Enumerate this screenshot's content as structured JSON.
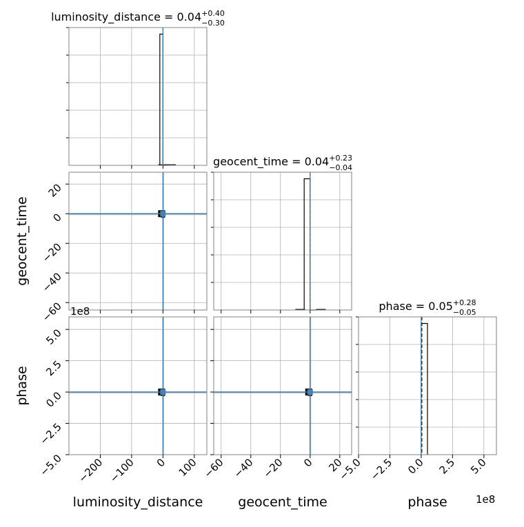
{
  "chart_data": {
    "type": "corner",
    "parameters": [
      "luminosity_distance",
      "geocent_time",
      "phase"
    ],
    "axis_labels": {
      "x": [
        "luminosity_distance",
        "geocent_time",
        "phase"
      ],
      "y": [
        "geocent_time",
        "phase"
      ]
    },
    "titles": [
      {
        "param": "luminosity_distance",
        "text": "luminosity_distance = 0.04",
        "plus": "+0.40",
        "minus": "−0.30"
      },
      {
        "param": "geocent_time",
        "text": "geocent_time = 0.04",
        "plus": "+0.23",
        "minus": "−0.04"
      },
      {
        "param": "phase",
        "text": "phase = 0.05",
        "plus": "+0.28",
        "minus": "−0.05"
      }
    ],
    "ranges": {
      "luminosity_distance": [
        -300,
        140
      ],
      "geocent_time": [
        -65,
        28
      ],
      "phase": [
        -500000000,
        600000000
      ]
    },
    "ticks": {
      "luminosity_distance": [
        {
          "v": -200,
          "label": "−200"
        },
        {
          "v": -100,
          "label": "−100"
        },
        {
          "v": 0,
          "label": "0"
        },
        {
          "v": 100,
          "label": "100"
        }
      ],
      "geocent_time": [
        {
          "v": -60,
          "label": "−60"
        },
        {
          "v": -40,
          "label": "−40"
        },
        {
          "v": -20,
          "label": "−20"
        },
        {
          "v": 0,
          "label": "0"
        },
        {
          "v": 20,
          "label": "20"
        }
      ],
      "phase": [
        {
          "v": -500000000,
          "label": "−5.0"
        },
        {
          "v": -250000000,
          "label": "−2.5"
        },
        {
          "v": 0,
          "label": "0.0"
        },
        {
          "v": 250000000,
          "label": "2.5"
        },
        {
          "v": 500000000,
          "label": "5.0"
        }
      ]
    },
    "offset_labels": {
      "phase_y": "1e8",
      "phase_x": "1e8"
    },
    "truths": {
      "luminosity_distance": 0,
      "geocent_time": 0,
      "phase": 0
    },
    "medians": {
      "luminosity_distance": 0.04,
      "geocent_time": 0.04,
      "phase": 5000000
    },
    "histograms": {
      "luminosity_distance": {
        "edges": [
          -10,
          0,
          10
        ],
        "counts": [
          1.0,
          0.0
        ],
        "tails": [
          [
            -15,
            0.005
          ],
          [
            10,
            0.005
          ]
        ]
      },
      "geocent_time": {
        "edges": [
          -4,
          0,
          4
        ],
        "counts": [
          1.0,
          0.0
        ],
        "tails": [
          [
            -10,
            0.005
          ],
          [
            4,
            0.005
          ]
        ]
      },
      "phase": {
        "edges": [
          -5000000,
          0,
          50000000
        ],
        "counts": [
          0.0,
          1.0
        ],
        "tails": []
      }
    },
    "grid": true,
    "truth_color": "#4682b4",
    "hist_color": "#000000"
  }
}
